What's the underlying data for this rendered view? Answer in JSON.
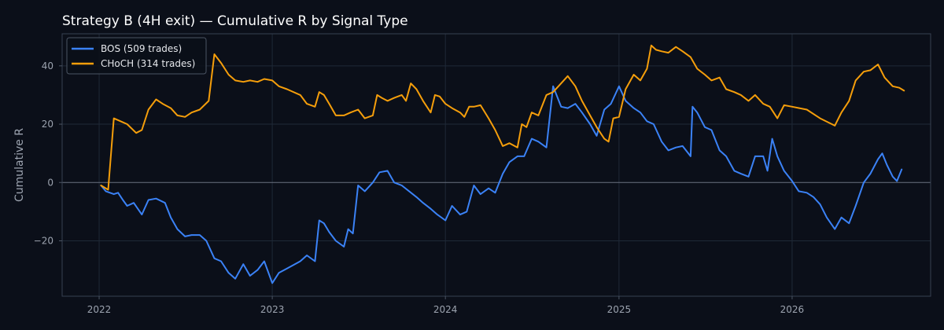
{
  "chart_data": {
    "type": "line",
    "title": "Strategy B (4H exit) — Cumulative R by Signal Type",
    "xlabel": "",
    "ylabel": "Cumulative R",
    "xlim": [
      "2021-10-15",
      "2026-10-20"
    ],
    "ylim": [
      -39,
      51
    ],
    "x_ticks": [
      "2022",
      "2023",
      "2024",
      "2025",
      "2026"
    ],
    "y_ticks": [
      -20,
      0,
      20,
      40
    ],
    "grid": true,
    "legend_position": "top-left",
    "background": "#0b0f19",
    "series": [
      {
        "name": "BOS (509 trades)",
        "color": "#3b82f6",
        "points": [
          [
            "2022-01-05",
            -1
          ],
          [
            "2022-01-15",
            -3
          ],
          [
            "2022-02-01",
            -4
          ],
          [
            "2022-02-10",
            -3.5
          ],
          [
            "2022-02-20",
            -6
          ],
          [
            "2022-03-01",
            -8
          ],
          [
            "2022-03-15",
            -7
          ],
          [
            "2022-04-01",
            -11
          ],
          [
            "2022-04-15",
            -6
          ],
          [
            "2022-05-01",
            -5.5
          ],
          [
            "2022-05-20",
            -7
          ],
          [
            "2022-06-01",
            -12
          ],
          [
            "2022-06-15",
            -16
          ],
          [
            "2022-07-01",
            -18.5
          ],
          [
            "2022-07-15",
            -18
          ],
          [
            "2022-08-01",
            -18
          ],
          [
            "2022-08-15",
            -20
          ],
          [
            "2022-09-01",
            -26
          ],
          [
            "2022-09-15",
            -27
          ],
          [
            "2022-10-01",
            -31
          ],
          [
            "2022-10-15",
            -33
          ],
          [
            "2022-11-01",
            -28
          ],
          [
            "2022-11-15",
            -32
          ],
          [
            "2022-12-01",
            -30
          ],
          [
            "2022-12-15",
            -27
          ],
          [
            "2023-01-01",
            -34.5
          ],
          [
            "2023-01-15",
            -31
          ],
          [
            "2023-02-01",
            -29.5
          ],
          [
            "2023-03-01",
            -27
          ],
          [
            "2023-03-15",
            -25
          ],
          [
            "2023-04-01",
            -27
          ],
          [
            "2023-04-10",
            -13
          ],
          [
            "2023-04-20",
            -14
          ],
          [
            "2023-05-01",
            -17
          ],
          [
            "2023-05-15",
            -20
          ],
          [
            "2023-06-01",
            -22
          ],
          [
            "2023-06-10",
            -16
          ],
          [
            "2023-06-20",
            -17.5
          ],
          [
            "2023-07-01",
            -1
          ],
          [
            "2023-07-15",
            -3
          ],
          [
            "2023-08-01",
            0
          ],
          [
            "2023-08-15",
            3.5
          ],
          [
            "2023-09-01",
            4
          ],
          [
            "2023-09-15",
            0
          ],
          [
            "2023-10-01",
            -1
          ],
          [
            "2023-11-01",
            -5
          ],
          [
            "2023-11-15",
            -7
          ],
          [
            "2023-12-01",
            -9
          ],
          [
            "2023-12-15",
            -11
          ],
          [
            "2024-01-01",
            -13
          ],
          [
            "2024-01-15",
            -8
          ],
          [
            "2024-02-01",
            -11
          ],
          [
            "2024-02-15",
            -10
          ],
          [
            "2024-03-01",
            -1
          ],
          [
            "2024-03-15",
            -4
          ],
          [
            "2024-04-01",
            -2
          ],
          [
            "2024-04-15",
            -3.5
          ],
          [
            "2024-05-01",
            3
          ],
          [
            "2024-05-15",
            7
          ],
          [
            "2024-06-01",
            9
          ],
          [
            "2024-06-15",
            9
          ],
          [
            "2024-07-01",
            15
          ],
          [
            "2024-07-15",
            14
          ],
          [
            "2024-08-01",
            12
          ],
          [
            "2024-08-15",
            33
          ],
          [
            "2024-09-01",
            26
          ],
          [
            "2024-09-15",
            25.5
          ],
          [
            "2024-10-01",
            27
          ],
          [
            "2024-10-15",
            24
          ],
          [
            "2024-11-01",
            20
          ],
          [
            "2024-11-15",
            16
          ],
          [
            "2024-12-01",
            25
          ],
          [
            "2024-12-15",
            27
          ],
          [
            "2025-01-01",
            33
          ],
          [
            "2025-01-15",
            28
          ],
          [
            "2025-02-01",
            25.5
          ],
          [
            "2025-02-15",
            24
          ],
          [
            "2025-03-01",
            21
          ],
          [
            "2025-03-15",
            20
          ],
          [
            "2025-04-01",
            14
          ],
          [
            "2025-04-15",
            11
          ],
          [
            "2025-05-01",
            12
          ],
          [
            "2025-05-15",
            12.5
          ],
          [
            "2025-06-01",
            9
          ],
          [
            "2025-06-05",
            26
          ],
          [
            "2025-06-15",
            24
          ],
          [
            "2025-07-01",
            19
          ],
          [
            "2025-07-15",
            18
          ],
          [
            "2025-08-01",
            11
          ],
          [
            "2025-08-15",
            9
          ],
          [
            "2025-09-01",
            4
          ],
          [
            "2025-09-15",
            3
          ],
          [
            "2025-10-01",
            2
          ],
          [
            "2025-10-15",
            9
          ],
          [
            "2025-11-01",
            9
          ],
          [
            "2025-11-10",
            4
          ],
          [
            "2025-11-20",
            15
          ],
          [
            "2025-12-01",
            9
          ],
          [
            "2025-12-15",
            4
          ],
          [
            "2026-01-01",
            0.5
          ],
          [
            "2026-01-15",
            -3
          ],
          [
            "2026-02-01",
            -3.5
          ],
          [
            "2026-02-15",
            -5
          ],
          [
            "2026-03-01",
            -7.5
          ],
          [
            "2026-03-15",
            -12
          ],
          [
            "2026-04-01",
            -16
          ],
          [
            "2026-04-15",
            -12
          ],
          [
            "2026-05-01",
            -14
          ],
          [
            "2026-05-15",
            -8
          ],
          [
            "2026-06-01",
            0
          ],
          [
            "2026-06-15",
            3
          ],
          [
            "2026-07-01",
            8
          ],
          [
            "2026-07-10",
            10
          ],
          [
            "2026-07-20",
            6
          ],
          [
            "2026-08-01",
            2
          ],
          [
            "2026-08-10",
            0.5
          ],
          [
            "2026-08-20",
            4.5
          ]
        ]
      },
      {
        "name": "CHoCH (314 trades)",
        "color": "#f59e0b",
        "points": [
          [
            "2022-01-05",
            -1
          ],
          [
            "2022-01-20",
            -2.5
          ],
          [
            "2022-02-01",
            22
          ],
          [
            "2022-02-15",
            21
          ],
          [
            "2022-03-01",
            20
          ],
          [
            "2022-03-20",
            17
          ],
          [
            "2022-04-01",
            18
          ],
          [
            "2022-04-15",
            25
          ],
          [
            "2022-05-01",
            28.5
          ],
          [
            "2022-05-15",
            27
          ],
          [
            "2022-06-01",
            25.5
          ],
          [
            "2022-06-15",
            23
          ],
          [
            "2022-07-01",
            22.5
          ],
          [
            "2022-07-15",
            24
          ],
          [
            "2022-08-01",
            25
          ],
          [
            "2022-08-20",
            28
          ],
          [
            "2022-09-01",
            44
          ],
          [
            "2022-09-15",
            41
          ],
          [
            "2022-10-01",
            37
          ],
          [
            "2022-10-15",
            35
          ],
          [
            "2022-11-01",
            34.5
          ],
          [
            "2022-11-15",
            35
          ],
          [
            "2022-12-01",
            34.5
          ],
          [
            "2022-12-15",
            35.5
          ],
          [
            "2023-01-01",
            35
          ],
          [
            "2023-01-15",
            33
          ],
          [
            "2023-02-01",
            32
          ],
          [
            "2023-03-01",
            30
          ],
          [
            "2023-03-15",
            27
          ],
          [
            "2023-04-01",
            26
          ],
          [
            "2023-04-10",
            31
          ],
          [
            "2023-04-20",
            30
          ],
          [
            "2023-05-01",
            27
          ],
          [
            "2023-05-15",
            23
          ],
          [
            "2023-06-01",
            23
          ],
          [
            "2023-06-15",
            24
          ],
          [
            "2023-07-01",
            25
          ],
          [
            "2023-07-15",
            22
          ],
          [
            "2023-08-01",
            23
          ],
          [
            "2023-08-10",
            30
          ],
          [
            "2023-08-20",
            29
          ],
          [
            "2023-09-01",
            28
          ],
          [
            "2023-09-15",
            29
          ],
          [
            "2023-10-01",
            30
          ],
          [
            "2023-10-10",
            28
          ],
          [
            "2023-10-20",
            34
          ],
          [
            "2023-11-01",
            32
          ],
          [
            "2023-11-15",
            28
          ],
          [
            "2023-12-01",
            24
          ],
          [
            "2023-12-10",
            30
          ],
          [
            "2023-12-20",
            29.5
          ],
          [
            "2024-01-01",
            27
          ],
          [
            "2024-01-15",
            25.5
          ],
          [
            "2024-02-01",
            24
          ],
          [
            "2024-02-10",
            22.5
          ],
          [
            "2024-02-20",
            26
          ],
          [
            "2024-03-01",
            26
          ],
          [
            "2024-03-15",
            26.5
          ],
          [
            "2024-04-01",
            22
          ],
          [
            "2024-04-15",
            18
          ],
          [
            "2024-05-01",
            12.5
          ],
          [
            "2024-05-15",
            13.5
          ],
          [
            "2024-06-01",
            12
          ],
          [
            "2024-06-10",
            20
          ],
          [
            "2024-06-20",
            19
          ],
          [
            "2024-07-01",
            24
          ],
          [
            "2024-07-15",
            23
          ],
          [
            "2024-08-01",
            30
          ],
          [
            "2024-08-15",
            31
          ],
          [
            "2024-09-01",
            34
          ],
          [
            "2024-09-15",
            36.5
          ],
          [
            "2024-10-01",
            33
          ],
          [
            "2024-10-15",
            28
          ],
          [
            "2024-11-01",
            23
          ],
          [
            "2024-11-15",
            19
          ],
          [
            "2024-12-01",
            15
          ],
          [
            "2024-12-10",
            14
          ],
          [
            "2024-12-20",
            22
          ],
          [
            "2025-01-01",
            22.5
          ],
          [
            "2025-01-15",
            32
          ],
          [
            "2025-02-01",
            37
          ],
          [
            "2025-02-15",
            35
          ],
          [
            "2025-03-01",
            39
          ],
          [
            "2025-03-10",
            47
          ],
          [
            "2025-03-20",
            45.5
          ],
          [
            "2025-04-01",
            45
          ],
          [
            "2025-04-15",
            44.5
          ],
          [
            "2025-05-01",
            46.5
          ],
          [
            "2025-05-15",
            45
          ],
          [
            "2025-06-01",
            43
          ],
          [
            "2025-06-15",
            39
          ],
          [
            "2025-07-01",
            37
          ],
          [
            "2025-07-15",
            35
          ],
          [
            "2025-08-01",
            36
          ],
          [
            "2025-08-15",
            32
          ],
          [
            "2025-09-01",
            31
          ],
          [
            "2025-09-15",
            30
          ],
          [
            "2025-10-01",
            28
          ],
          [
            "2025-10-15",
            30
          ],
          [
            "2025-11-01",
            27
          ],
          [
            "2025-11-15",
            26
          ],
          [
            "2025-12-01",
            22
          ],
          [
            "2025-12-15",
            26.5
          ],
          [
            "2026-01-01",
            26
          ],
          [
            "2026-02-01",
            25
          ],
          [
            "2026-03-01",
            22
          ],
          [
            "2026-04-01",
            19.5
          ],
          [
            "2026-04-15",
            24
          ],
          [
            "2026-05-01",
            28
          ],
          [
            "2026-05-15",
            35
          ],
          [
            "2026-06-01",
            38
          ],
          [
            "2026-06-15",
            38.5
          ],
          [
            "2026-07-01",
            40.5
          ],
          [
            "2026-07-15",
            36
          ],
          [
            "2026-08-01",
            33
          ],
          [
            "2026-08-15",
            32.5
          ],
          [
            "2026-08-25",
            31.5
          ]
        ]
      }
    ]
  }
}
